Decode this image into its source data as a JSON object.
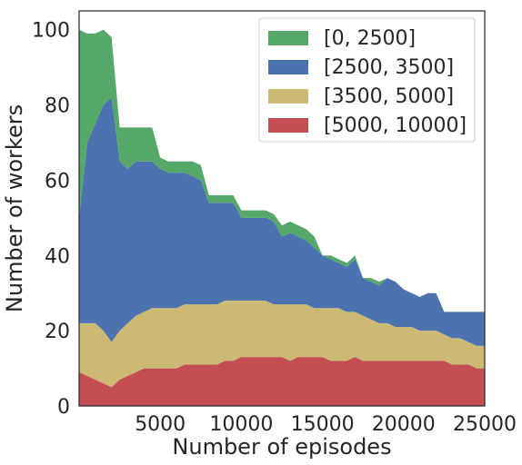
{
  "chart_data": {
    "type": "area",
    "title": "",
    "xlabel": "Number of episodes",
    "ylabel": "Number of workers",
    "xlim": [
      0,
      25000
    ],
    "ylim": [
      0,
      105
    ],
    "xticks": [
      5000,
      10000,
      15000,
      20000,
      25000
    ],
    "yticks": [
      0,
      20,
      40,
      60,
      80,
      100
    ],
    "grid": false,
    "legend_position": "top-right",
    "x": [
      0,
      500,
      1000,
      1500,
      2000,
      2500,
      3000,
      3500,
      4000,
      4500,
      5000,
      5500,
      6000,
      6500,
      7000,
      7500,
      8000,
      8500,
      9000,
      9500,
      10000,
      10500,
      11000,
      11500,
      12000,
      12500,
      13000,
      13500,
      14000,
      14500,
      15000,
      15500,
      16000,
      16500,
      17000,
      17500,
      18000,
      18500,
      19000,
      19500,
      20000,
      20500,
      21000,
      21500,
      22000,
      22500,
      23000,
      23500,
      24000,
      24500,
      25000
    ],
    "series": [
      {
        "name": "[5000, 10000]",
        "color": "#c44e52",
        "values": [
          9,
          8,
          7,
          6,
          5,
          7,
          8,
          9,
          10,
          10,
          10,
          10,
          10,
          11,
          11,
          11,
          11,
          11,
          12,
          12,
          13,
          13,
          13,
          13,
          13,
          13,
          12,
          13,
          13,
          13,
          13,
          12,
          12,
          12,
          13,
          12,
          12,
          12,
          12,
          12,
          12,
          12,
          12,
          12,
          12,
          12,
          11,
          11,
          11,
          10,
          10
        ]
      },
      {
        "name": "[3500, 5000]",
        "color": "#ccb974",
        "values": [
          13,
          14,
          15,
          14,
          12,
          13,
          14,
          15,
          15,
          16,
          16,
          16,
          16,
          16,
          16,
          16,
          16,
          16,
          16,
          16,
          15,
          15,
          15,
          15,
          14,
          14,
          15,
          14,
          14,
          13,
          13,
          14,
          14,
          13,
          12,
          12,
          11,
          10,
          10,
          9,
          9,
          9,
          8,
          8,
          8,
          7,
          7,
          7,
          6,
          6,
          6
        ]
      },
      {
        "name": "[2500, 3500]",
        "color": "#4c72b0",
        "values": [
          28,
          48,
          53,
          60,
          65,
          45,
          41,
          41,
          40,
          39,
          37,
          36,
          36,
          35,
          34,
          33,
          27,
          27,
          26,
          26,
          22,
          22,
          22,
          22,
          22,
          18,
          19,
          18,
          17,
          16,
          14,
          13,
          12,
          12,
          14,
          10,
          10,
          10,
          12,
          12,
          10,
          9,
          9,
          10,
          10,
          6,
          7,
          7,
          8,
          9,
          9
        ]
      },
      {
        "name": "[0, 2500]",
        "color": "#55a868",
        "values": [
          50,
          29,
          24,
          20,
          16,
          9,
          11,
          9,
          9,
          9,
          3,
          3,
          3,
          3,
          4,
          4,
          2,
          2,
          2,
          2,
          2,
          2,
          2,
          2,
          2,
          3,
          3,
          3,
          3,
          3,
          0,
          1,
          1,
          1,
          1,
          0,
          1,
          1,
          0,
          0,
          0,
          0,
          0,
          0,
          0,
          0,
          0,
          0,
          0,
          0,
          0
        ]
      }
    ],
    "legend": [
      "[5000, 10000]",
      "[3500, 5000]",
      "[2500, 3500]",
      "[0, 2500]"
    ]
  }
}
